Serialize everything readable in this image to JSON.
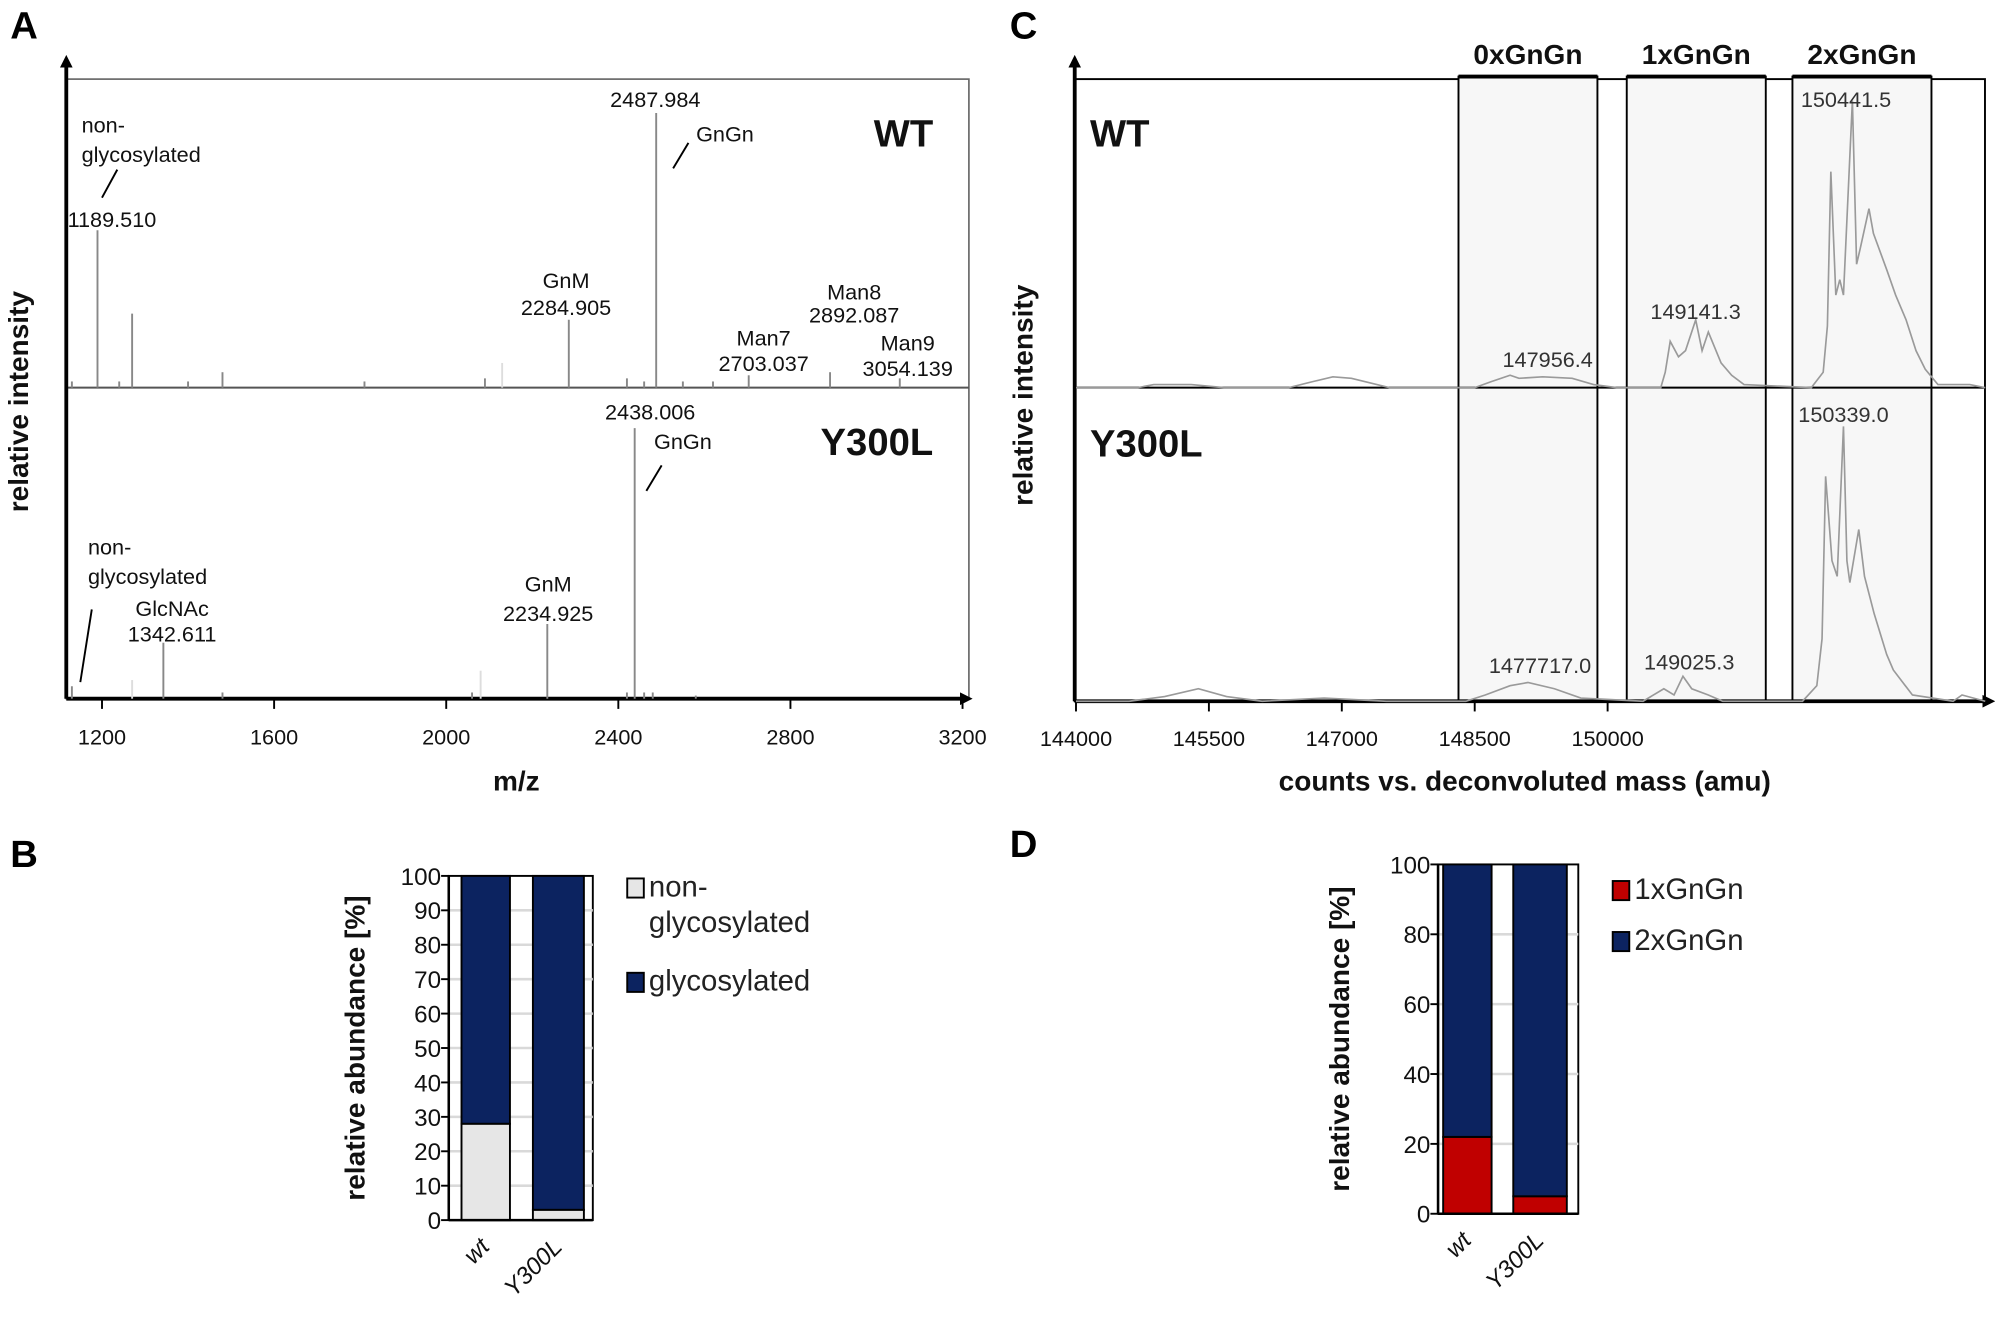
{
  "panel_letters": {
    "a": "A",
    "b": "B",
    "c": "C",
    "d": "D"
  },
  "colors": {
    "non_glycosylated": "#e6e6e6",
    "glycosylated": "#0c2360",
    "one_gngn": "#c00000",
    "two_gngn": "#0c2360",
    "trace": "#9a9a9a",
    "region": "#f7f7f7"
  },
  "chart_data": [
    {
      "panel": "A",
      "type": "line",
      "subtype": "stick-spectrum",
      "xlabel": "m/z",
      "ylabel": "relative intensity",
      "xlim": [
        1117,
        3210
      ],
      "xticks": [
        "1200",
        "1600",
        "2000",
        "2400",
        "2800",
        "3200"
      ],
      "spectra": [
        {
          "name": "WT",
          "peaks": [
            [
              1130,
              0.02
            ],
            [
              1189.51,
              0.51
            ],
            [
              1240,
              0.02
            ],
            [
              1270,
              0.24
            ],
            [
              1400,
              0.02
            ],
            [
              1480,
              0.05
            ],
            [
              1810,
              0.02
            ],
            [
              2090,
              0.03
            ],
            [
              2130,
              0.08
            ],
            [
              2284.905,
              0.22
            ],
            [
              2420,
              0.03
            ],
            [
              2460,
              0.02
            ],
            [
              2487.984,
              0.89
            ],
            [
              2550,
              0.02
            ],
            [
              2620,
              0.02
            ],
            [
              2703.037,
              0.04
            ],
            [
              2892.087,
              0.05
            ],
            [
              3054.139,
              0.03
            ]
          ],
          "annotations": [
            {
              "lines": [
                "non-",
                "glycosylated"
              ]
            },
            {
              "lines": [
                "1189.510"
              ]
            },
            {
              "lines": [
                "2487.984"
              ]
            },
            {
              "lines": [
                "GnGn"
              ]
            },
            {
              "lines": [
                "GnM",
                "2284.905"
              ]
            },
            {
              "lines": [
                "Man7",
                "2703.037"
              ]
            },
            {
              "lines": [
                "Man8",
                "2892.087"
              ]
            },
            {
              "lines": [
                "Man9",
                "3054.139"
              ]
            }
          ]
        },
        {
          "name": "Y300L",
          "peaks": [
            [
              1130,
              0.04
            ],
            [
              1270,
              0.06
            ],
            [
              1342.611,
              0.18
            ],
            [
              1480,
              0.02
            ],
            [
              2060,
              0.02
            ],
            [
              2080,
              0.09
            ],
            [
              2234.925,
              0.24
            ],
            [
              2420,
              0.02
            ],
            [
              2438.006,
              0.87
            ],
            [
              2460,
              0.02
            ],
            [
              2480,
              0.02
            ],
            [
              2580,
              0.01
            ]
          ],
          "annotations": [
            {
              "lines": [
                "2438.006"
              ]
            },
            {
              "lines": [
                "GnGn"
              ]
            },
            {
              "lines": [
                "non-",
                "glycosylated"
              ]
            },
            {
              "lines": [
                "GlcNAc",
                "1342.611"
              ]
            },
            {
              "lines": [
                "GnM",
                "2234.925"
              ]
            }
          ]
        }
      ]
    },
    {
      "panel": "B",
      "type": "bar",
      "stacked": true,
      "categories": [
        "wt",
        "Y300L"
      ],
      "series": [
        {
          "name": "non-glycosylated",
          "legend_lines": [
            "non-",
            "glycosylated"
          ],
          "values": [
            28,
            3
          ]
        },
        {
          "name": "glycosylated",
          "legend_lines": [
            "glycosylated"
          ],
          "values": [
            72,
            97
          ]
        }
      ],
      "ylabel": "relative abundance [%]",
      "ylim": [
        0,
        100
      ],
      "yticks": [
        "0",
        "10",
        "20",
        "30",
        "40",
        "50",
        "60",
        "70",
        "80",
        "90",
        "100"
      ],
      "legend": "right"
    },
    {
      "panel": "C",
      "type": "line",
      "xlabel": "counts vs. deconvoluted mass (amu)",
      "ylabel": "relative intensity",
      "xlim": [
        144000,
        154300
      ],
      "xticks": [
        "144000",
        "145500",
        "147000",
        "148500",
        "150000"
      ],
      "regions": [
        {
          "label": "0xGnGn",
          "range": [
            148317,
            149885
          ]
        },
        {
          "label": "1xGnGn",
          "range": [
            150216,
            151785
          ]
        },
        {
          "label": "2xGnGn",
          "range": [
            152086,
            153655
          ]
        }
      ],
      "spectra": [
        {
          "name": "WT",
          "trace": [
            [
              144000,
              0
            ],
            [
              144700,
              0
            ],
            [
              144878,
              0.01
            ],
            [
              145300,
              0.01
            ],
            [
              145669,
              0
            ],
            [
              146400,
              0
            ],
            [
              146677,
              0.02
            ],
            [
              146900,
              0.035
            ],
            [
              147108,
              0.03
            ],
            [
              147540,
              0
            ],
            [
              148500,
              0
            ],
            [
              148691,
              0.02
            ],
            [
              148900,
              0.04
            ],
            [
              149000,
              0.03
            ],
            [
              149267,
              0.035
            ],
            [
              149600,
              0.03
            ],
            [
              149842,
              0.01
            ],
            [
              150100,
              0
            ],
            [
              150600,
              0
            ],
            [
              150650,
              0.05
            ],
            [
              150706,
              0.15
            ],
            [
              150800,
              0.1
            ],
            [
              150879,
              0.12
            ],
            [
              150994,
              0.22
            ],
            [
              151066,
              0.12
            ],
            [
              151137,
              0.18
            ],
            [
              151281,
              0.08
            ],
            [
              151400,
              0.04
            ],
            [
              151540,
              0.01
            ],
            [
              152300,
              0
            ],
            [
              152433,
              0.05
            ],
            [
              152480,
              0.2
            ],
            [
              152519,
              0.7
            ],
            [
              152576,
              0.3
            ],
            [
              152620,
              0.35
            ],
            [
              152662,
              0.3
            ],
            [
              152763,
              0.93
            ],
            [
              152810,
              0.4
            ],
            [
              152850,
              0.45
            ],
            [
              152950,
              0.58
            ],
            [
              153000,
              0.5
            ],
            [
              153152,
              0.38
            ],
            [
              153250,
              0.3
            ],
            [
              153368,
              0.22
            ],
            [
              153480,
              0.12
            ],
            [
              153584,
              0.06
            ],
            [
              153728,
              0.01
            ],
            [
              154088,
              0.01
            ],
            [
              154262,
              0
            ]
          ],
          "peak_labels": [
            "147956.4",
            "149141.3",
            "150441.5"
          ]
        },
        {
          "name": "Y300L",
          "trace": [
            [
              144000,
              0
            ],
            [
              144600,
              0
            ],
            [
              145000,
              0.015
            ],
            [
              145381,
              0.04
            ],
            [
              145700,
              0.015
            ],
            [
              146100,
              0
            ],
            [
              146800,
              0.01
            ],
            [
              147500,
              0
            ],
            [
              148400,
              0
            ],
            [
              148619,
              0.02
            ],
            [
              148900,
              0.05
            ],
            [
              149100,
              0.06
            ],
            [
              149400,
              0.04
            ],
            [
              149698,
              0.01
            ],
            [
              150400,
              0
            ],
            [
              150634,
              0.04
            ],
            [
              150750,
              0.02
            ],
            [
              150850,
              0.08
            ],
            [
              150950,
              0.04
            ],
            [
              151137,
              0.02
            ],
            [
              151300,
              0
            ],
            [
              152200,
              0
            ],
            [
              152361,
              0.05
            ],
            [
              152420,
              0.2
            ],
            [
              152461,
              0.72
            ],
            [
              152533,
              0.45
            ],
            [
              152591,
              0.4
            ],
            [
              152662,
              0.88
            ],
            [
              152700,
              0.45
            ],
            [
              152734,
              0.38
            ],
            [
              152835,
              0.55
            ],
            [
              152900,
              0.4
            ],
            [
              153008,
              0.28
            ],
            [
              153150,
              0.15
            ],
            [
              153224,
              0.1
            ],
            [
              153440,
              0.02
            ],
            [
              153900,
              0
            ],
            [
              154000,
              0.02
            ],
            [
              154262,
              0
            ]
          ],
          "peak_labels": [
            "1477717.0",
            "149025.3",
            "150339.0"
          ]
        }
      ]
    },
    {
      "panel": "D",
      "type": "bar",
      "stacked": true,
      "categories": [
        "wt",
        "Y300L"
      ],
      "series": [
        {
          "name": "1xGnGn",
          "legend_lines": [
            "1xGnGn"
          ],
          "values": [
            22,
            5
          ]
        },
        {
          "name": "2xGnGn",
          "legend_lines": [
            "2xGnGn"
          ],
          "values": [
            78,
            95
          ]
        }
      ],
      "ylabel": "relative abundance [%]",
      "ylim": [
        0,
        100
      ],
      "yticks": [
        "0",
        "20",
        "40",
        "60",
        "80",
        "100"
      ],
      "legend": "right"
    }
  ]
}
